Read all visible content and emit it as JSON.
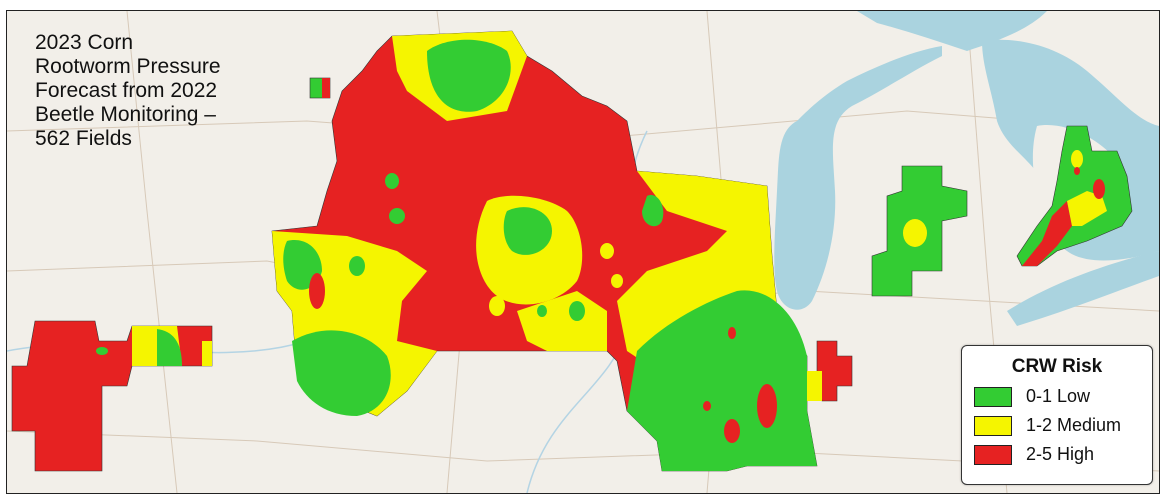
{
  "map": {
    "title": "2023 Corn\nRootworm Pressure\nForecast from 2022\nBeetle Monitoring –\n562 Fields",
    "background_color": "#f2efe9",
    "water_color": "#aad3df",
    "legend": {
      "title": "CRW Risk",
      "items": [
        {
          "label": "0-1 Low",
          "color": "#33cc33"
        },
        {
          "label": "1-2 Medium",
          "color": "#f5f500"
        },
        {
          "label": "2-5 High",
          "color": "#e62222"
        }
      ]
    }
  }
}
